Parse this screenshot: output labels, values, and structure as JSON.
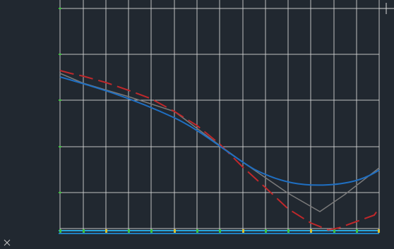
{
  "app": {
    "background": "#212830",
    "grid_color": "#d9d9d9",
    "tick_color": "#3fbf3f",
    "baseline_color": "#1e9bd7",
    "ucs_icon": "ucs-axis-icon",
    "crosshair_icon": "crosshair-icon"
  },
  "curves": [
    {
      "name": "",
      "color": "#1f6fc2",
      "style": "solid"
    },
    {
      "name": "",
      "color": "#c0282b",
      "style": "dashed"
    },
    {
      "name": "",
      "color": "#7a7a7a",
      "style": "solid"
    }
  ]
}
